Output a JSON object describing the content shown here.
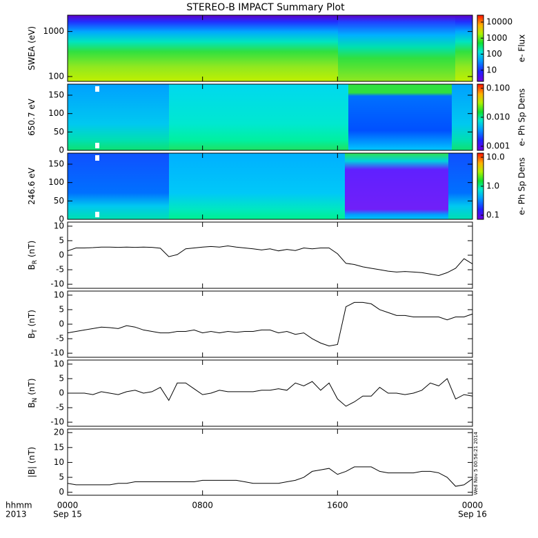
{
  "chart_data": [
    {
      "type": "heatmap",
      "title": "STEREO-B IMPACT Summary Plot",
      "ylabel": "SWEA (eV)",
      "ylog": true,
      "ylim": [
        78,
        2300
      ],
      "yticks": [
        100,
        1000
      ],
      "xlim": [
        0,
        24
      ],
      "colorbar": {
        "label": "e- Flux",
        "log": true,
        "clim": [
          2,
          27000
        ],
        "ticks": [
          10,
          100,
          1000,
          10000
        ]
      }
    },
    {
      "type": "heatmap",
      "ylabel": "650.7 eV",
      "ylim": [
        0,
        180
      ],
      "yticks": [
        0,
        50,
        100,
        150
      ],
      "xlim": [
        0,
        24
      ],
      "colorbar": {
        "label": "e- Ph Sp Dens",
        "log": true,
        "clim": [
          0.00072,
          0.139
        ],
        "ticks": [
          {
            "value": 0.001,
            "label": "0.001"
          },
          {
            "value": 0.01,
            "label": "0.010"
          },
          {
            "value": 0.1,
            "label": "0.100"
          }
        ]
      }
    },
    {
      "type": "heatmap",
      "ylabel": "246.6 eV",
      "ylim": [
        0,
        180
      ],
      "yticks": [
        0,
        50,
        100,
        150
      ],
      "xlim": [
        0,
        24
      ],
      "colorbar": {
        "label": "e- Ph Sp Dens",
        "log": true,
        "clim": [
          0.072,
          13.9
        ],
        "ticks": [
          0.1,
          {
            "value": 1,
            "label": "1.0"
          },
          {
            "value": 10,
            "label": "10.0"
          }
        ]
      }
    },
    {
      "type": "line",
      "ylabel": "B",
      "ylabel_sub": "R",
      "ylabel_unit": " (nT)",
      "color": "#000000",
      "ylim": [
        -11.4,
        11.4
      ],
      "yticks": [
        -10,
        -5,
        0,
        5,
        10
      ],
      "xlim": [
        0,
        24
      ],
      "x": [
        0,
        0.5,
        1,
        1.5,
        2,
        2.5,
        3,
        3.5,
        4,
        4.5,
        5,
        5.5,
        6,
        6.5,
        7,
        7.5,
        8,
        8.5,
        9,
        9.5,
        10,
        10.5,
        11,
        11.5,
        12,
        12.5,
        13,
        13.5,
        14,
        14.5,
        15,
        15.5,
        16,
        16.5,
        17,
        17.5,
        18,
        18.5,
        19,
        19.5,
        20,
        20.5,
        21,
        21.5,
        22,
        22.5,
        23,
        23.5,
        24
      ],
      "values": [
        1.5,
        2.5,
        2.5,
        2.6,
        2.8,
        2.8,
        2.7,
        2.8,
        2.7,
        2.8,
        2.7,
        2.4,
        -0.5,
        0.2,
        2.2,
        2.5,
        2.8,
        3,
        2.8,
        3.2,
        2.8,
        2.5,
        2.2,
        1.8,
        2.2,
        1.5,
        2,
        1.6,
        2.5,
        2.2,
        2.5,
        2.5,
        0.5,
        -2.8,
        -3.2,
        -4,
        -4.5,
        -5,
        -5.5,
        -5.8,
        -5.6,
        -5.8,
        -6,
        -6.5,
        -7,
        -6,
        -4.5,
        -1.2,
        -3
      ]
    },
    {
      "type": "line",
      "ylabel": "B",
      "ylabel_sub": "T",
      "ylabel_unit": " (nT)",
      "color": "#000000",
      "ylim": [
        -11.4,
        11.4
      ],
      "yticks": [
        -10,
        -5,
        0,
        5,
        10
      ],
      "xlim": [
        0,
        24
      ],
      "x": [
        0,
        0.5,
        1,
        1.5,
        2,
        2.5,
        3,
        3.5,
        4,
        4.5,
        5,
        5.5,
        6,
        6.5,
        7,
        7.5,
        8,
        8.5,
        9,
        9.5,
        10,
        10.5,
        11,
        11.5,
        12,
        12.5,
        13,
        13.5,
        14,
        14.5,
        15,
        15.5,
        16,
        16.5,
        17,
        17.5,
        18,
        18.5,
        19,
        19.5,
        20,
        20.5,
        21,
        21.5,
        22,
        22.5,
        23,
        23.5,
        24
      ],
      "values": [
        -3,
        -2.5,
        -2,
        -1.5,
        -1,
        -1.2,
        -1.5,
        -0.5,
        -1,
        -2,
        -2.5,
        -3,
        -3,
        -2.5,
        -2.5,
        -2,
        -3,
        -2.5,
        -3,
        -2.5,
        -2.8,
        -2.5,
        -2.5,
        -2,
        -2,
        -3,
        -2.5,
        -3.5,
        -3,
        -5,
        -6.5,
        -7.5,
        -7,
        6,
        7.5,
        7.5,
        7,
        5,
        4,
        3,
        3,
        2.5,
        2.5,
        2.5,
        2.5,
        1.5,
        2.5,
        2.5,
        3.5
      ]
    },
    {
      "type": "line",
      "ylabel": "B",
      "ylabel_sub": "N",
      "ylabel_unit": " (nT)",
      "color": "#000000",
      "ylim": [
        -11.4,
        11.4
      ],
      "yticks": [
        -10,
        -5,
        0,
        5,
        10
      ],
      "xlim": [
        0,
        24
      ],
      "x": [
        0,
        0.5,
        1,
        1.5,
        2,
        2.5,
        3,
        3.5,
        4,
        4.5,
        5,
        5.5,
        6,
        6.5,
        7,
        7.5,
        8,
        8.5,
        9,
        9.5,
        10,
        10.5,
        11,
        11.5,
        12,
        12.5,
        13,
        13.5,
        14,
        14.5,
        15,
        15.5,
        16,
        16.5,
        17,
        17.5,
        18,
        18.5,
        19,
        19.5,
        20,
        20.5,
        21,
        21.5,
        22,
        22.5,
        23,
        23.5,
        24
      ],
      "values": [
        0,
        0,
        0,
        -0.5,
        0.5,
        0,
        -0.5,
        0.5,
        1,
        0,
        0.5,
        2,
        -2.5,
        3.5,
        3.5,
        1.5,
        -0.5,
        0,
        1,
        0.5,
        0.5,
        0.5,
        0.5,
        1,
        1,
        1.5,
        1,
        3.5,
        2.5,
        4,
        1,
        3.5,
        -2,
        -4.5,
        -3,
        -1,
        -1,
        2,
        0,
        0,
        -0.5,
        0,
        1,
        3.5,
        2.5,
        5,
        -2,
        -0.5,
        -1
      ]
    },
    {
      "type": "line",
      "ylabel": "|B| (nT)",
      "color": "#000000",
      "ylim": [
        -1,
        21.2
      ],
      "yticks": [
        0,
        5,
        10,
        15,
        20
      ],
      "xlim": [
        0,
        24
      ],
      "x": [
        0,
        0.5,
        1,
        1.5,
        2,
        2.5,
        3,
        3.5,
        4,
        4.5,
        5,
        5.5,
        6,
        6.5,
        7,
        7.5,
        8,
        8.5,
        9,
        9.5,
        10,
        10.5,
        11,
        11.5,
        12,
        12.5,
        13,
        13.5,
        14,
        14.5,
        15,
        15.5,
        16,
        16.5,
        17,
        17.5,
        18,
        18.5,
        19,
        19.5,
        20,
        20.5,
        21,
        21.5,
        22,
        22.5,
        23,
        23.5,
        24
      ],
      "values": [
        3,
        2.5,
        2.5,
        2.5,
        2.5,
        2.5,
        3,
        3,
        3.5,
        3.5,
        3.5,
        3.5,
        3.5,
        3.5,
        3.5,
        3.5,
        4,
        4,
        4,
        4,
        4,
        3.5,
        3,
        3,
        3,
        3,
        3.5,
        4,
        5,
        7,
        7.5,
        8,
        6,
        7,
        8.5,
        8.5,
        8.5,
        7,
        6.5,
        6.5,
        6.5,
        6.5,
        7,
        7,
        6.5,
        5,
        2,
        2.5,
        4.5
      ],
      "xticks": [
        {
          "value": 0,
          "label": "0000"
        },
        {
          "value": 8,
          "label": "0800"
        },
        {
          "value": 16,
          "label": "1600"
        },
        {
          "value": 24,
          "label": "0000"
        }
      ],
      "xtick_dates": [
        "Sep 15",
        null,
        null,
        "Sep 16"
      ],
      "xlabel": "hhmm",
      "year": "2013",
      "annotation": "Wed Nov  5 00:56:21 2014"
    }
  ]
}
